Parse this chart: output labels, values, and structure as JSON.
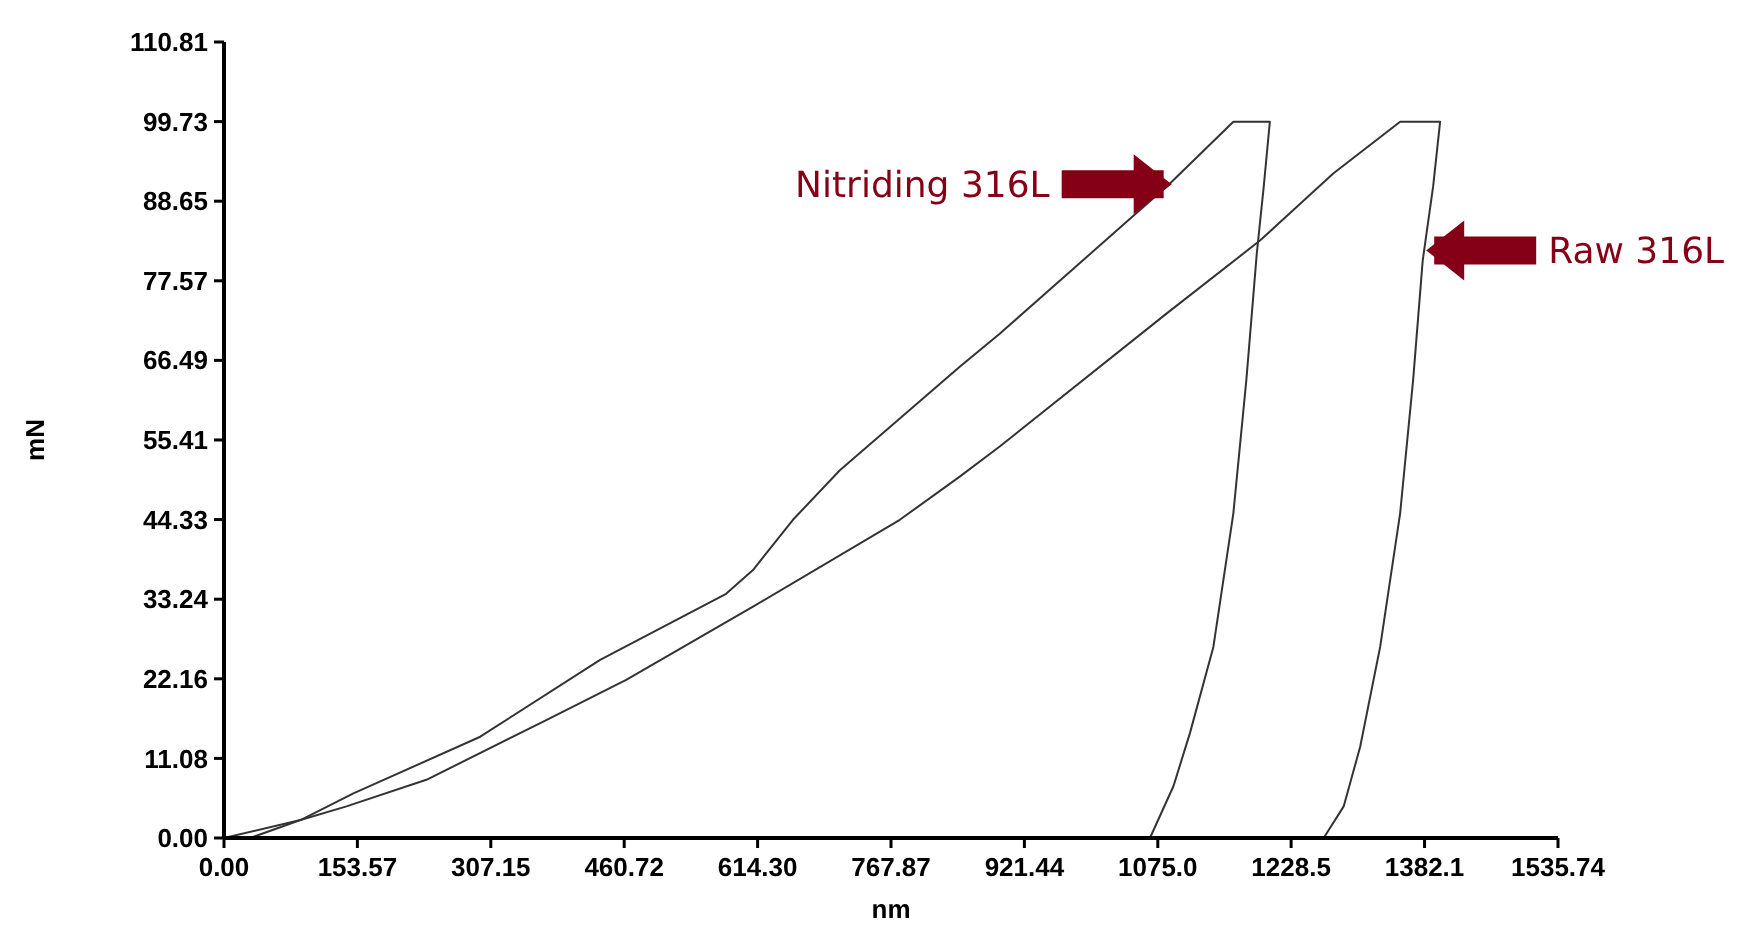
{
  "chart_data": {
    "type": "line",
    "xlabel": "nm",
    "ylabel": "mN",
    "grid": false,
    "marker": "none",
    "line_style": "solid",
    "xlim": [
      0,
      1535.74
    ],
    "ylim": [
      0,
      110.81
    ],
    "xticks": [
      {
        "value": 0,
        "label": "0.00"
      },
      153.57,
      307.15,
      460.72,
      {
        "value": 614.3,
        "label": "614.30"
      },
      767.87,
      921.44,
      {
        "value": 1075.02,
        "label": "1075.0"
      },
      1228.5,
      1382.1,
      1535.74
    ],
    "yticks": [
      {
        "value": 0,
        "label": "0.00"
      },
      11.08,
      22.16,
      33.24,
      44.33,
      55.41,
      66.49,
      77.57,
      88.65,
      99.73,
      110.81
    ],
    "series": [
      {
        "color": "#333333",
        "x": [
          0,
          88,
          149,
          295,
          433,
          578,
          609,
          655,
          709,
          847,
          893,
          1089,
          1162,
          1169,
          1204,
          1197,
          1189,
          1177,
          1162,
          1139,
          1112,
          1093,
          1066
        ],
        "values": [
          0,
          2.5,
          6.2,
          14.1,
          24.8,
          34.0,
          37.3,
          44.3,
          51.2,
          65.6,
          70.2,
          91.1,
          99.7,
          99.7,
          99.7,
          90.7,
          81.4,
          63.8,
          45.2,
          26.6,
          14.6,
          7.2,
          0
        ]
      },
      {
        "color": "#333333",
        "x": [
          30,
          88,
          141,
          233,
          371,
          463,
          609,
          778,
          847,
          893,
          1085,
          1193,
          1277,
          1354,
          1400,
          1392,
          1380,
          1369,
          1354,
          1331,
          1308,
          1289,
          1266
        ],
        "values": [
          0,
          2.5,
          4.4,
          8.1,
          16.4,
          22.0,
          32.2,
          44.3,
          50.3,
          54.5,
          73.0,
          83.2,
          92.5,
          99.7,
          99.7,
          90.7,
          80.4,
          63.8,
          45.2,
          26.6,
          12.7,
          4.4,
          0
        ]
      }
    ],
    "annotations": [
      {
        "text": "Nitriding 316L",
        "x": 1091,
        "y": 91
      },
      {
        "text": "Raw 316L",
        "x": 1384,
        "y": 81.8
      }
    ]
  }
}
